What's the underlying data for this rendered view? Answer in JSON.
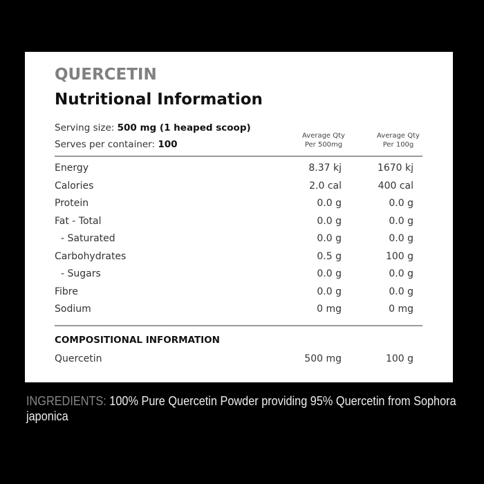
{
  "brand": "QUERCETIN",
  "title": "Nutritional Information",
  "serving_size_label": "Serving size:",
  "serving_size_value": "500 mg (1 heaped scoop)",
  "serves_label": "Serves per container:",
  "serves_value": "100",
  "columns": [
    {
      "line1": "Average Qty",
      "line2": "Per 500mg"
    },
    {
      "line1": "Average Qty",
      "line2": "Per 100g"
    }
  ],
  "rows": [
    {
      "label": "Energy",
      "per_serve": "8.37 kj",
      "per_100g": "1670 kj"
    },
    {
      "label": "Calories",
      "per_serve": "2.0 cal",
      "per_100g": "400 cal"
    },
    {
      "label": "Protein",
      "per_serve": "0.0 g",
      "per_100g": "0.0 g"
    },
    {
      "label": "Fat - Total",
      "per_serve": "0.0 g",
      "per_100g": "0.0 g"
    },
    {
      "label": "- Saturated",
      "per_serve": "0.0 g",
      "per_100g": "0.0 g"
    },
    {
      "label": "Carbohydrates",
      "per_serve": "0.5 g",
      "per_100g": "100 g"
    },
    {
      "label": "- Sugars",
      "per_serve": "0.0 g",
      "per_100g": "0.0 g"
    },
    {
      "label": "Fibre",
      "per_serve": "0.0 g",
      "per_100g": "0.0 g"
    },
    {
      "label": "Sodium",
      "per_serve": "0 mg",
      "per_100g": "0 mg"
    }
  ],
  "compositional": {
    "heading": "COMPOSITIONAL INFORMATION",
    "rows": [
      {
        "label": "Quercetin",
        "per_serve": "500 mg",
        "per_100g": "100 g"
      }
    ]
  },
  "ingredients": {
    "label": "INGREDIENTS:",
    "text": " 100% Pure Quercetin Powder providing 95% Quercetin from Sophora japonica"
  }
}
